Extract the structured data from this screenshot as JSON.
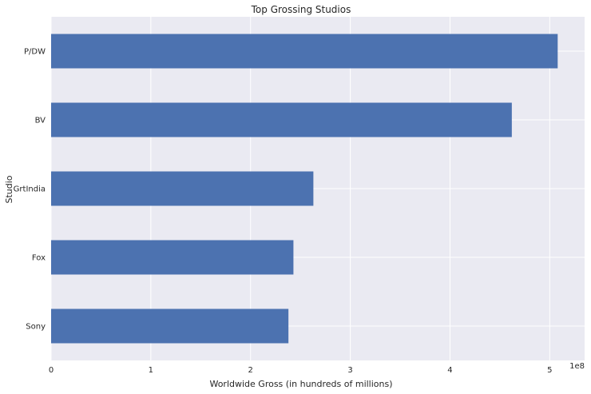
{
  "chart_data": {
    "type": "bar",
    "orientation": "horizontal",
    "title": "Top Grossing Studios",
    "xlabel": "Worldwide Gross (in hundreds of millions)",
    "ylabel": "Studio",
    "offset_text": "1e8",
    "categories": [
      "P/DW",
      "BV",
      "GrtIndia",
      "Fox",
      "Sony"
    ],
    "values": [
      508000000,
      462000000,
      263000000,
      243000000,
      238000000
    ],
    "xlim": [
      0,
      535000000
    ],
    "xticks": [
      0,
      100000000,
      200000000,
      300000000,
      400000000,
      500000000
    ],
    "xtick_labels": [
      "0",
      "1",
      "2",
      "3",
      "4",
      "5"
    ],
    "bar_color": "#4c72b0",
    "background_color": "#eaeaf2",
    "grid": true
  }
}
